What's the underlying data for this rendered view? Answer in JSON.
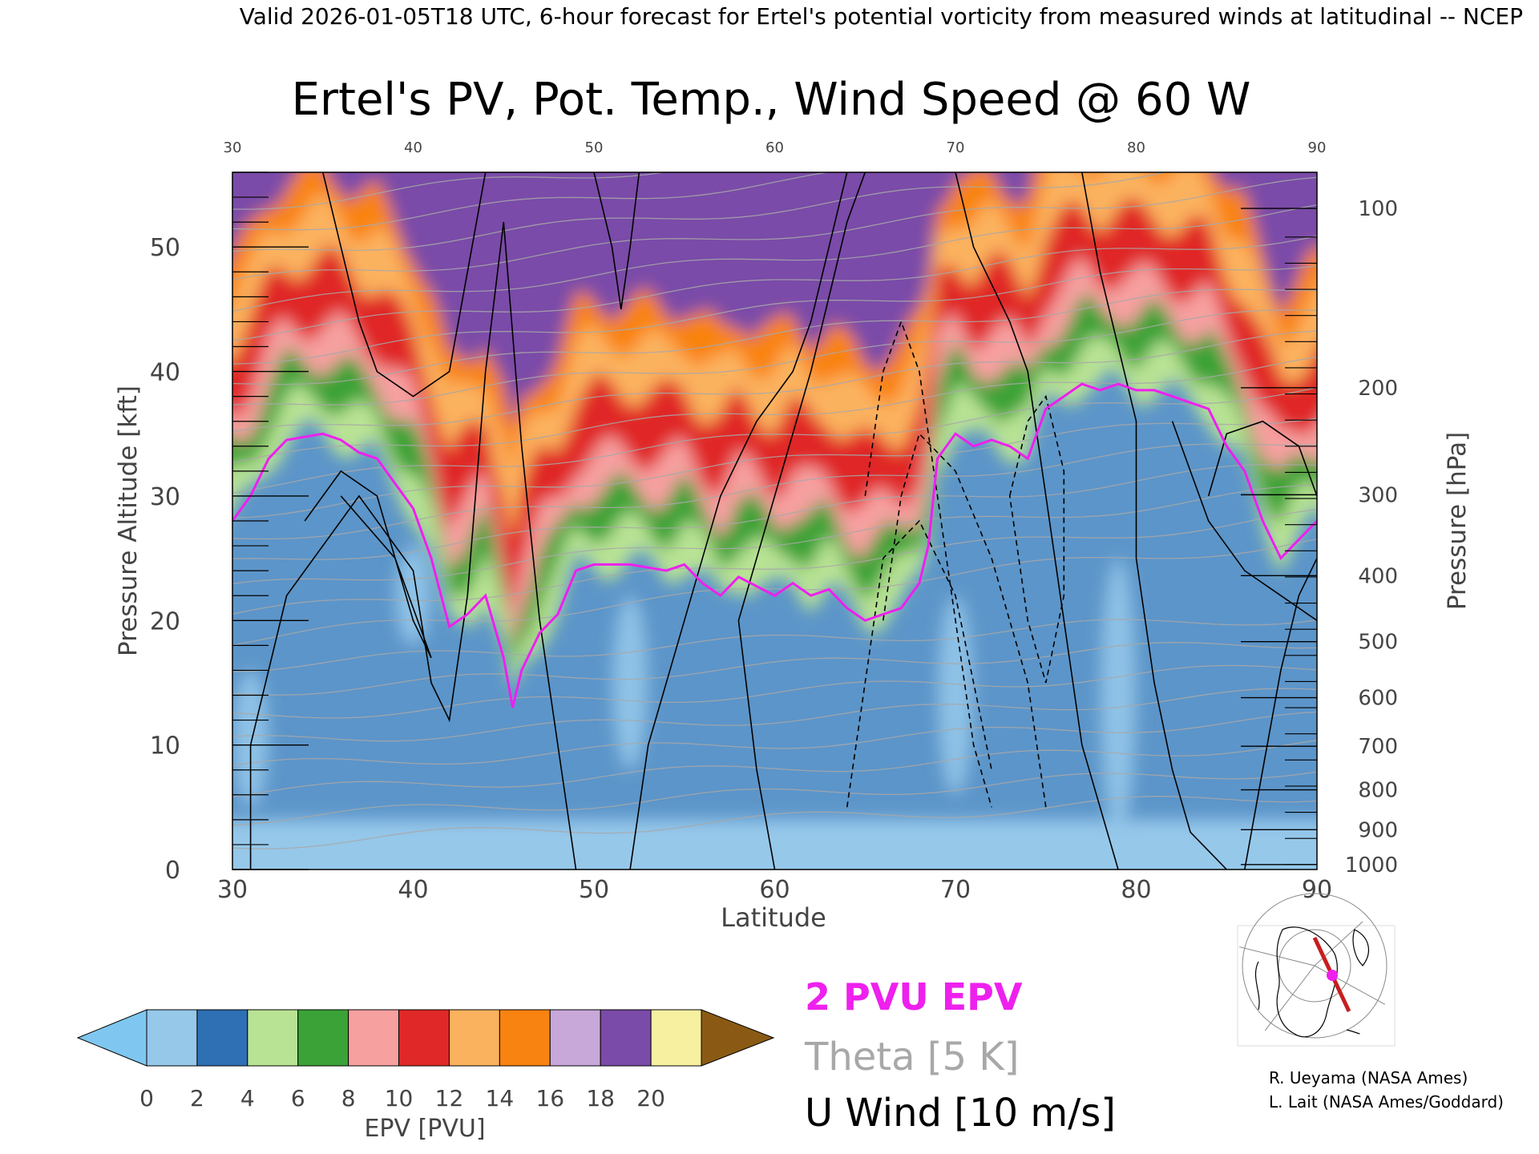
{
  "header": {
    "valid_line": "Valid 2026-01-05T18 UTC, 6-hour forecast for Ertel's potential vorticity from measured winds at latitudinal -- NCEP"
  },
  "chart_data": {
    "type": "heatmap",
    "title": "Ertel's PV, Pot. Temp., Wind Speed @ 60 W",
    "xlabel": "Latitude",
    "ylabel": "Pressure Altitude [kft]",
    "y2label": "Pressure [hPa]",
    "xlim": [
      30,
      90
    ],
    "ylim": [
      0,
      56
    ],
    "x_ticks": [
      "30",
      "40",
      "50",
      "60",
      "70",
      "80",
      "90"
    ],
    "y_ticks": [
      "0",
      "10",
      "20",
      "30",
      "40",
      "50"
    ],
    "pressure_ticks": [
      {
        "label": "100",
        "kft": 53.1
      },
      {
        "label": "200",
        "kft": 38.7
      },
      {
        "label": "300",
        "kft": 30.1
      },
      {
        "label": "400",
        "kft": 23.6
      },
      {
        "label": "500",
        "kft": 18.3
      },
      {
        "label": "600",
        "kft": 13.8
      },
      {
        "label": "700",
        "kft": 9.9
      },
      {
        "label": "800",
        "kft": 6.4
      },
      {
        "label": "900",
        "kft": 3.2
      },
      {
        "label": "1000",
        "kft": 0.4
      }
    ],
    "tropopause_2pvu_kft": [
      [
        30,
        28
      ],
      [
        31,
        30
      ],
      [
        32,
        33
      ],
      [
        33,
        34.5
      ],
      [
        35,
        35
      ],
      [
        36,
        34.5
      ],
      [
        37,
        33.5
      ],
      [
        38,
        33
      ],
      [
        39,
        31
      ],
      [
        40,
        29
      ],
      [
        41,
        25
      ],
      [
        42,
        19.5
      ],
      [
        43,
        20.5
      ],
      [
        44,
        22
      ],
      [
        45,
        17
      ],
      [
        45.5,
        13
      ],
      [
        46,
        16
      ],
      [
        47,
        19
      ],
      [
        48,
        20.5
      ],
      [
        49,
        24
      ],
      [
        50,
        24.5
      ],
      [
        52,
        24.5
      ],
      [
        54,
        24
      ],
      [
        55,
        24.5
      ],
      [
        56,
        23
      ],
      [
        57,
        22
      ],
      [
        58,
        23.5
      ],
      [
        60,
        22
      ],
      [
        61,
        23
      ],
      [
        62,
        22
      ],
      [
        63,
        22.5
      ],
      [
        64,
        21
      ],
      [
        65,
        20
      ],
      [
        66,
        20.5
      ],
      [
        67,
        21
      ],
      [
        68,
        23
      ],
      [
        68.5,
        26
      ],
      [
        69,
        33
      ],
      [
        70,
        35
      ],
      [
        71,
        34
      ],
      [
        72,
        34.5
      ],
      [
        73,
        34
      ],
      [
        74,
        33
      ],
      [
        75,
        37
      ],
      [
        76,
        38
      ],
      [
        77,
        39
      ],
      [
        78,
        38.5
      ],
      [
        79,
        39
      ],
      [
        80,
        38.5
      ],
      [
        81,
        38.5
      ],
      [
        82,
        38
      ],
      [
        83,
        37.5
      ],
      [
        84,
        37
      ],
      [
        85,
        34
      ],
      [
        86,
        32
      ],
      [
        87,
        28
      ],
      [
        88,
        25
      ],
      [
        89,
        26.5
      ],
      [
        90,
        28
      ]
    ],
    "epv_colorbar": {
      "label": "EPV [PVU]",
      "tick_labels": [
        "0",
        "2",
        "4",
        "6",
        "8",
        "10",
        "12",
        "14",
        "16",
        "18",
        "20"
      ],
      "colors": [
        "#96c8ea",
        "#2f6fb4",
        "#b9e394",
        "#3aa236",
        "#f7a0a0",
        "#e02828",
        "#fbb25e",
        "#f98310",
        "#c8a8d8",
        "#7a4ba8",
        "#f7f0a0"
      ],
      "below_color": "#7fc7f0",
      "above_color": "#8a5a14"
    },
    "legend": {
      "pv_label": "2 PVU EPV",
      "pv_color": "#ee20ee",
      "theta_label": "Theta [5 K]",
      "theta_color": "#a8a8a8",
      "wind_label": "U Wind [10 m/s]",
      "wind_color": "#000000"
    },
    "map_inset": {
      "marker_color": "#ee20ee",
      "section_color": "#c81e1e"
    },
    "credits": [
      "R. Ueyama (NASA Ames)",
      "L. Lait (NASA Ames/Goddard)"
    ]
  }
}
